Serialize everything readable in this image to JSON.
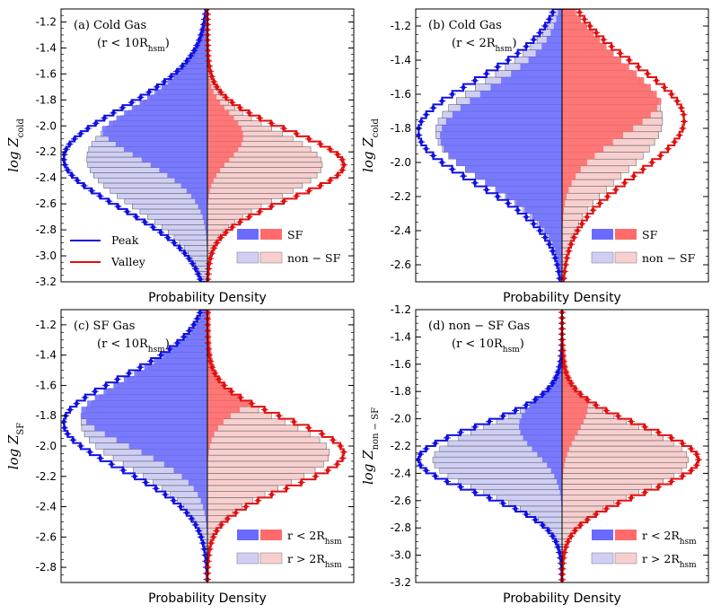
{
  "chart_data": [
    {
      "type": "mirrored-histogram",
      "panel_label": "(a)",
      "title": "Cold Gas",
      "subtitle": "(r < 10R_hsm)",
      "ylabel_main": "log Z",
      "ylabel_sub": "cold",
      "xlabel": "Probability Density",
      "ylim": [
        -3.2,
        -1.1
      ],
      "yticks": [
        "-1.2",
        "-1.4",
        "-1.6",
        "-1.8",
        "-2.0",
        "-2.2",
        "-2.4",
        "-2.6",
        "-2.8",
        "-3.0",
        "-3.2"
      ],
      "ytick_values": [
        -1.2,
        -1.4,
        -1.6,
        -1.8,
        -2.0,
        -2.2,
        -2.4,
        -2.6,
        -2.8,
        -3.0,
        -3.2
      ],
      "xmax": 1.0,
      "peak_outer": {
        "m": -2.25,
        "s": 0.38,
        "h": 1.0
      },
      "valley_outer": {
        "m": -2.3,
        "s": 0.26,
        "h": 0.95
      },
      "peak_inner": {
        "m": -1.95,
        "s": 0.3,
        "h": 0.78
      },
      "valley_inner": {
        "m": -2.08,
        "s": 0.18,
        "h": 0.25
      },
      "peak_total": {
        "m": -2.25,
        "s": 0.38,
        "h": 0.84
      },
      "valley_total": {
        "m": -2.3,
        "s": 0.26,
        "h": 0.8
      },
      "show_line_legend": true,
      "legend_lines": [
        {
          "label": "Peak",
          "color": "#1010e0"
        },
        {
          "label": "Valley",
          "color": "#e01010"
        }
      ],
      "legend_bars": [
        "SF",
        "non − SF"
      ]
    },
    {
      "type": "mirrored-histogram",
      "panel_label": "(b)",
      "title": "Cold Gas",
      "subtitle": "(r < 2R_hsm)",
      "ylabel_main": "log Z",
      "ylabel_sub": "cold",
      "xlabel": "Probability Density",
      "ylim": [
        -2.7,
        -1.1
      ],
      "yticks": [
        "-1.2",
        "-1.4",
        "-1.6",
        "-1.8",
        "-2.0",
        "-2.2",
        "-2.4",
        "-2.6"
      ],
      "ytick_values": [
        -1.2,
        -1.4,
        -1.6,
        -1.8,
        -2.0,
        -2.2,
        -2.4,
        -2.6
      ],
      "xmax": 1.0,
      "peak_outer": {
        "m": -1.82,
        "s": 0.3,
        "h": 1.0
      },
      "valley_outer": {
        "m": -1.75,
        "s": 0.32,
        "h": 0.85
      },
      "peak_inner": {
        "m": -1.85,
        "s": 0.28,
        "h": 0.85
      },
      "valley_inner": {
        "m": -1.6,
        "s": 0.24,
        "h": 0.7
      },
      "peak_total": {
        "m": -1.82,
        "s": 0.3,
        "h": 0.88
      },
      "valley_total": {
        "m": -1.75,
        "s": 0.32,
        "h": 0.7
      },
      "show_line_legend": false,
      "legend_lines": [],
      "legend_bars": [
        "SF",
        "non − SF"
      ]
    },
    {
      "type": "mirrored-histogram",
      "panel_label": "(c)",
      "title": "SF Gas",
      "subtitle": "(r < 10R_hsm)",
      "ylabel_main": "log Z",
      "ylabel_sub": "SF",
      "xlabel": "Probability Density",
      "ylim": [
        -2.9,
        -1.1
      ],
      "yticks": [
        "-1.2",
        "-1.4",
        "-1.6",
        "-1.8",
        "-2.0",
        "-2.2",
        "-2.4",
        "-2.6",
        "-2.8"
      ],
      "ytick_values": [
        -1.2,
        -1.4,
        -1.6,
        -1.8,
        -2.0,
        -2.2,
        -2.4,
        -2.6,
        -2.8
      ],
      "xmax": 1.0,
      "peak_outer": {
        "m": -1.85,
        "s": 0.3,
        "h": 1.0
      },
      "valley_outer": {
        "m": -2.05,
        "s": 0.22,
        "h": 0.95
      },
      "peak_inner": {
        "m": -1.75,
        "s": 0.25,
        "h": 0.9
      },
      "valley_inner": {
        "m": -1.45,
        "s": 0.2,
        "h": 0.75
      },
      "peak_total": {
        "m": -1.85,
        "s": 0.3,
        "h": 0.88
      },
      "valley_total": {
        "m": -2.05,
        "s": 0.22,
        "h": 0.85
      },
      "show_line_legend": false,
      "legend_lines": [],
      "legend_bars": [
        "r < 2R_hsm",
        "r > 2R_hsm"
      ]
    },
    {
      "type": "mirrored-histogram",
      "panel_label": "(d)",
      "title": "non − SF Gas",
      "subtitle": "(r < 10R_hsm)",
      "ylabel_main": "log Z",
      "ylabel_sub": "non − SF",
      "xlabel": "Probability Density",
      "ylim": [
        -3.2,
        -1.2
      ],
      "yticks": [
        "-1.2",
        "-1.4",
        "-1.6",
        "-1.8",
        "-2.0",
        "-2.2",
        "-2.4",
        "-2.6",
        "-2.8",
        "-3.0",
        "-3.2"
      ],
      "ytick_values": [
        -1.2,
        -1.4,
        -1.6,
        -1.8,
        -2.0,
        -2.2,
        -2.4,
        -2.6,
        -2.8,
        -3.0,
        -3.2
      ],
      "xmax": 1.0,
      "peak_outer": {
        "m": -2.3,
        "s": 0.24,
        "h": 1.0
      },
      "valley_outer": {
        "m": -2.3,
        "s": 0.24,
        "h": 0.95
      },
      "peak_inner": {
        "m": -2.05,
        "s": 0.2,
        "h": 0.3
      },
      "valley_inner": {
        "m": -1.9,
        "s": 0.2,
        "h": 0.18
      },
      "peak_total": {
        "m": -2.3,
        "s": 0.24,
        "h": 0.9
      },
      "valley_total": {
        "m": -2.3,
        "s": 0.24,
        "h": 0.88
      },
      "show_line_legend": false,
      "legend_lines": [],
      "legend_bars": [
        "r < 2R_hsm",
        "r > 2R_hsm"
      ]
    }
  ],
  "colors": {
    "peak_line": "#1010e0",
    "valley_line": "#e01010",
    "peak_inner": "#6a6aff",
    "valley_inner": "#ff6b6b",
    "peak_outer": "#cfcff5",
    "valley_outer": "#f8cfcf"
  }
}
